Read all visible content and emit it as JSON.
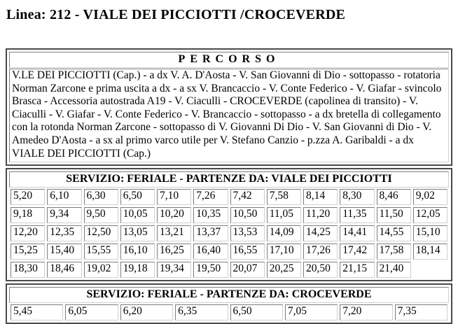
{
  "page_title": "Linea: 212 - VIALE DEI PICCIOTTI /CROCEVERDE",
  "percorso": {
    "title": "PERCORSO",
    "description": "V.LE DEI PICCIOTTI (Cap.) - a dx V. A. D'Aosta - V. San Giovanni di Dio - sottopasso - rotatoria Norman Zarcone e prima uscita a dx - a sx V. Brancaccio - V. Conte Federico - V. Giafar - svincolo Brasca - Accessoria autostrada A19 - V. Ciaculli - CROCEVERDE (capolinea di transito) - V. Ciaculli - V. Giafar - V. Conte Federico - V. Brancaccio - sottopasso - a dx bretella di collegamento con la rotonda Norman Zarcone - sottopasso di V. Giovanni Di Dio - V. San Giovanni di Dio - V. Amedeo D'Aosta - a sx al primo varco utile per V. Stefano Canzio - p.zza A. Garibaldi - a dx VIALE DEI PICCIOTTI (Cap.)"
  },
  "timetables": [
    {
      "title": "SERVIZIO: FERIALE - PARTENZE DA: VIALE DEI PICCIOTTI",
      "columns": 12,
      "rows": [
        [
          "5,20",
          "6,10",
          "6,30",
          "6,50",
          "7,10",
          "7,26",
          "7,42",
          "7,58",
          "8,14",
          "8,30",
          "8,46",
          "9,02"
        ],
        [
          "9,18",
          "9,34",
          "9,50",
          "10,05",
          "10,20",
          "10,35",
          "10,50",
          "11,05",
          "11,20",
          "11,35",
          "11,50",
          "12,05"
        ],
        [
          "12,20",
          "12,35",
          "12,50",
          "13,05",
          "13,21",
          "13,37",
          "13,53",
          "14,09",
          "14,25",
          "14,41",
          "14,55",
          "15,10"
        ],
        [
          "15,25",
          "15,40",
          "15,55",
          "16,10",
          "16,25",
          "16,40",
          "16,55",
          "17,10",
          "17,26",
          "17,42",
          "17,58",
          "18,14"
        ],
        [
          "18,30",
          "18,46",
          "19,02",
          "19,18",
          "19,34",
          "19,50",
          "20,07",
          "20,25",
          "20,50",
          "21,15",
          "21,40"
        ]
      ]
    },
    {
      "title": "SERVIZIO: FERIALE - PARTENZE DA: CROCEVERDE",
      "columns": 8,
      "rows": [
        [
          "5,45",
          "6,05",
          "6,20",
          "6,35",
          "6,50",
          "7,05",
          "7,20",
          "7,35"
        ]
      ]
    }
  ]
}
